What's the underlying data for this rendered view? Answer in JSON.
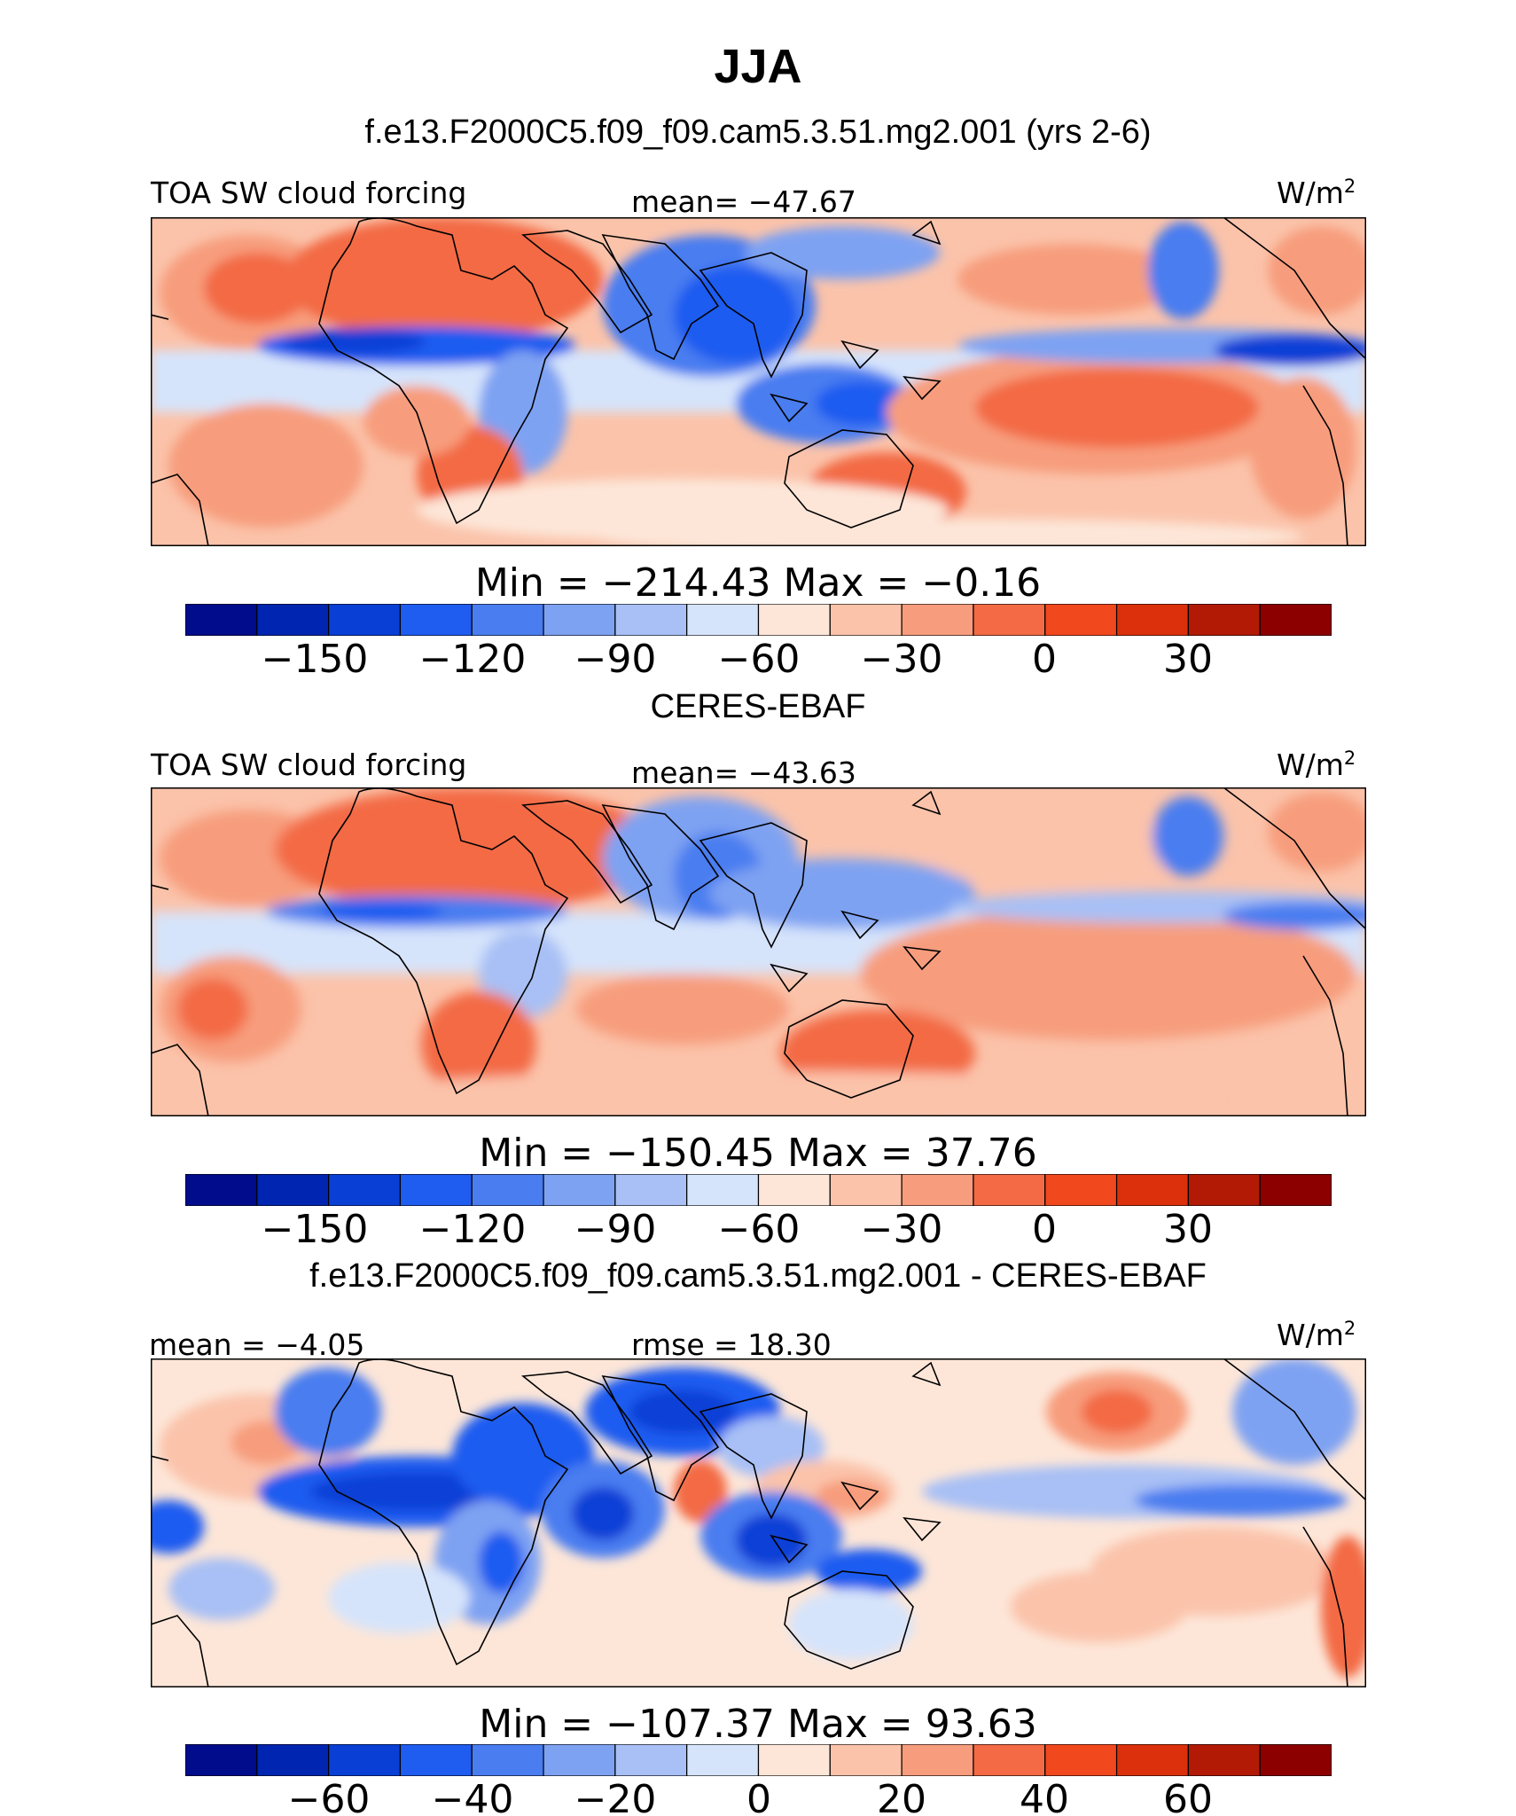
{
  "page": {
    "title": "JJA",
    "subtitle": "f.e13.F2000C5.f09_f09.cam5.3.51.mg2.001 (yrs 2-6)"
  },
  "colors": [
    "#000c8c",
    "#0025b0",
    "#0a3fd6",
    "#1f5cf0",
    "#4a7df0",
    "#7ea2f2",
    "#a8c0f5",
    "#d6e4fb",
    "#fde6d8",
    "#fbc3aa",
    "#f79d7d",
    "#f36a45",
    "#f2481e",
    "#dc300c",
    "#b21a06",
    "#8c0000"
  ],
  "panels": [
    {
      "top_left": "TOA SW cloud forcing",
      "top_center": "mean= −47.67",
      "units_base": "W/m",
      "units_exp": "2",
      "minmax": "Min  =  −214.43  Max  =   −0.16",
      "ticks": [
        "−150",
        "−120",
        "−90",
        "−60",
        "−30",
        "0",
        "30"
      ]
    },
    {
      "heading": "CERES-EBAF",
      "top_left": "TOA SW cloud forcing",
      "top_center": "mean= −43.63",
      "units_base": "W/m",
      "units_exp": "2",
      "minmax": "Min  =  −150.45  Max  =   37.76",
      "ticks": [
        "−150",
        "−120",
        "−90",
        "−60",
        "−30",
        "0",
        "30"
      ]
    },
    {
      "heading": "f.e13.F2000C5.f09_f09.cam5.3.51.mg2.001 - CERES-EBAF",
      "top_left": "mean  =   −4.05",
      "top_center": "rmse  =   18.30",
      "units_base": "W/m",
      "units_exp": "2",
      "minmax": "Min  =  −107.37  Max  =   93.63",
      "ticks": [
        "−60",
        "−40",
        "−20",
        "0",
        "20",
        "40",
        "60"
      ]
    }
  ]
}
